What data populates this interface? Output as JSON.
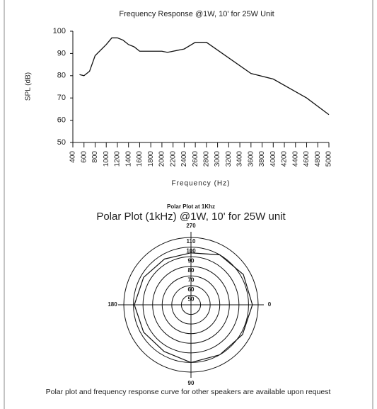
{
  "chart_data": [
    {
      "type": "line",
      "title": "Frequency Response @1W, 10' for 25W Unit",
      "ylabel": "SPL (dB)",
      "xlabel": "Frequency (Hz)",
      "x": [
        520,
        600,
        700,
        800,
        1000,
        1100,
        1200,
        1300,
        1400,
        1500,
        1600,
        1800,
        2000,
        2100,
        2400,
        2600,
        2800,
        3600,
        4000,
        4600,
        5000
      ],
      "series": [
        {
          "name": "SPL",
          "color": "#111111",
          "values": [
            80.5,
            80,
            82,
            89,
            94,
            97,
            97,
            96,
            94,
            93,
            91,
            91,
            91,
            90.5,
            92,
            95,
            95,
            81,
            78.5,
            70,
            62.5
          ]
        }
      ],
      "xlim": [
        400,
        5000
      ],
      "xticks": [
        400,
        600,
        800,
        1000,
        1200,
        1400,
        1600,
        1800,
        2000,
        2200,
        2400,
        2600,
        2800,
        3000,
        3200,
        3400,
        3600,
        3800,
        4000,
        4200,
        4400,
        4600,
        4800,
        5000
      ],
      "ylim": [
        50,
        100
      ],
      "yticks": [
        50,
        60,
        70,
        80,
        90,
        100
      ]
    },
    {
      "type": "polar",
      "subtitle": "Polar Plot at 1Khz",
      "title": "Polar Plot (1kHz) @1W, 10' for 25W unit",
      "theta": [
        0,
        30,
        60,
        90,
        120,
        150,
        180,
        210,
        240,
        270,
        300,
        330
      ],
      "series": [
        {
          "name": "SPL",
          "color": "#111111",
          "values": [
            104,
            102,
            100,
            100,
            96,
            97,
            99,
            97,
            95,
            94,
            100,
            103
          ]
        }
      ],
      "rlim": [
        40,
        110
      ],
      "rticks": [
        50,
        60,
        70,
        80,
        90,
        100,
        110
      ],
      "thetaticks": [
        0,
        90,
        180,
        270
      ]
    }
  ],
  "footer": "Polar plot and frequency response curve for other speakers are available upon request"
}
